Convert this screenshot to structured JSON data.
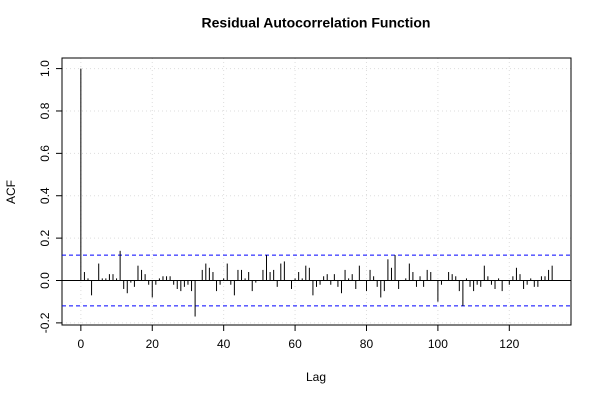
{
  "chart_data": {
    "type": "acf",
    "title": "Residual Autocorrelation Function",
    "x_label": "Lag",
    "y_label": "ACF",
    "x": [
      0,
      1,
      2,
      3,
      4,
      5,
      6,
      7,
      8,
      9,
      10,
      11,
      12,
      13,
      14,
      15,
      16,
      17,
      18,
      19,
      20,
      21,
      22,
      23,
      24,
      25,
      26,
      27,
      28,
      29,
      30,
      31,
      32,
      33,
      34,
      35,
      36,
      37,
      38,
      39,
      40,
      41,
      42,
      43,
      44,
      45,
      46,
      47,
      48,
      49,
      50,
      51,
      52,
      53,
      54,
      55,
      56,
      57,
      58,
      59,
      60,
      61,
      62,
      63,
      64,
      65,
      66,
      67,
      68,
      69,
      70,
      71,
      72,
      73,
      74,
      75,
      76,
      77,
      78,
      79,
      80,
      81,
      82,
      83,
      84,
      85,
      86,
      87,
      88,
      89,
      90,
      91,
      92,
      93,
      94,
      95,
      96,
      97,
      98,
      99,
      100,
      101,
      102,
      103,
      104,
      105,
      106,
      107,
      108,
      109,
      110,
      111,
      112,
      113,
      114,
      115,
      116,
      117,
      118,
      119,
      120,
      121,
      122,
      123,
      124,
      125,
      126,
      127,
      128,
      129,
      130,
      131,
      132
    ],
    "values": [
      1,
      0.04,
      0.01,
      -0.07,
      0.0,
      0.08,
      0.01,
      0.01,
      0.03,
      0.03,
      0.01,
      0.14,
      -0.04,
      -0.06,
      -0.01,
      -0.03,
      0.07,
      0.05,
      0.03,
      -0.02,
      -0.08,
      -0.02,
      0.01,
      0.02,
      0.02,
      0.02,
      -0.02,
      -0.04,
      -0.05,
      -0.03,
      -0.02,
      -0.05,
      -0.17,
      0.0,
      0.05,
      0.08,
      0.06,
      0.04,
      -0.05,
      -0.02,
      0.01,
      0.08,
      -0.02,
      -0.07,
      0.05,
      0.05,
      0.01,
      0.04,
      -0.05,
      -0.01,
      0.0,
      0.05,
      0.12,
      0.04,
      0.05,
      -0.03,
      0.08,
      0.09,
      0.0,
      -0.04,
      0.01,
      0.04,
      0.01,
      0.07,
      0.06,
      -0.07,
      -0.03,
      -0.02,
      0.02,
      0.03,
      -0.02,
      0.03,
      -0.03,
      -0.06,
      0.05,
      0.01,
      0.03,
      -0.04,
      0.07,
      0.0,
      -0.05,
      0.05,
      0.02,
      -0.03,
      -0.08,
      -0.05,
      0.1,
      0.06,
      0.12,
      -0.04,
      0.0,
      0.01,
      0.08,
      0.04,
      -0.03,
      0.02,
      -0.03,
      0.05,
      0.04,
      0.0,
      -0.1,
      -0.02,
      0.0,
      0.04,
      0.03,
      0.02,
      -0.05,
      -0.12,
      0.01,
      -0.03,
      -0.05,
      -0.02,
      -0.03,
      0.07,
      0.02,
      -0.02,
      -0.04,
      0.01,
      -0.05,
      0.0,
      -0.02,
      0.02,
      0.06,
      0.03,
      -0.04,
      -0.02,
      0.01,
      -0.03,
      -0.03,
      0.02,
      0.02,
      0.05,
      0.07
    ],
    "color": "#000000",
    "confidence_bounds": [
      -0.12,
      0.12
    ],
    "confidence_color": "#0000ff",
    "xlim": [
      -5.28,
      137.28
    ],
    "ylim": [
      -0.21,
      1.05
    ],
    "xticks": [
      0,
      20,
      40,
      60,
      80,
      100,
      120
    ],
    "yticks": [
      -0.2,
      {
        "value": 0,
        "label": "0.0"
      },
      0.2,
      0.4,
      0.6,
      0.8,
      {
        "value": 1,
        "label": "1.0"
      }
    ],
    "grid": true
  }
}
